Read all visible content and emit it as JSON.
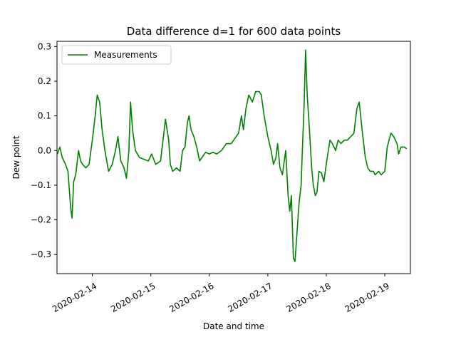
{
  "chart_data": {
    "type": "line",
    "title": "Data difference d=1 for 600 data points",
    "xlabel": "Date and time",
    "ylabel": "Dew point",
    "xlim": [
      "2020-02-13 09:30",
      "2020-02-19 10:30"
    ],
    "ylim": [
      -0.355,
      0.315
    ],
    "x_ticks": [
      "2020-02-14",
      "2020-02-15",
      "2020-02-16",
      "2020-02-17",
      "2020-02-18",
      "2020-02-19"
    ],
    "y_ticks": [
      -0.3,
      -0.2,
      -0.1,
      0.0,
      0.1,
      0.2,
      0.3
    ],
    "y_tick_labels": [
      "−0.3",
      "−0.2",
      "−0.1",
      "0.0",
      "0.1",
      "0.2",
      "0.3"
    ],
    "grid": false,
    "legend": {
      "position": "upper-left"
    },
    "colors": {
      "series": "#008000"
    },
    "series": [
      {
        "name": "Measurements",
        "points": [
          [
            "2020-02-13 09:40",
            -0.01
          ],
          [
            "2020-02-13 10:40",
            0.01
          ],
          [
            "2020-02-13 11:40",
            -0.02
          ],
          [
            "2020-02-13 12:20",
            -0.03
          ],
          [
            "2020-02-13 13:00",
            -0.04
          ],
          [
            "2020-02-13 14:00",
            -0.06
          ],
          [
            "2020-02-13 15:10",
            -0.17
          ],
          [
            "2020-02-13 15:40",
            -0.195
          ],
          [
            "2020-02-13 16:20",
            -0.09
          ],
          [
            "2020-02-13 17:10",
            -0.07
          ],
          [
            "2020-02-13 18:20",
            0.0
          ],
          [
            "2020-02-13 19:10",
            -0.03
          ],
          [
            "2020-02-13 20:00",
            -0.04
          ],
          [
            "2020-02-13 21:20",
            -0.05
          ],
          [
            "2020-02-13 22:40",
            -0.04
          ],
          [
            "2020-02-14 00:00",
            0.03
          ],
          [
            "2020-02-14 01:10",
            0.1
          ],
          [
            "2020-02-14 02:00",
            0.16
          ],
          [
            "2020-02-14 03:00",
            0.14
          ],
          [
            "2020-02-14 04:00",
            0.06
          ],
          [
            "2020-02-14 05:10",
            0.0
          ],
          [
            "2020-02-14 06:40",
            -0.06
          ],
          [
            "2020-02-14 08:10",
            -0.04
          ],
          [
            "2020-02-14 09:30",
            0.0
          ],
          [
            "2020-02-14 10:30",
            0.04
          ],
          [
            "2020-02-14 11:40",
            -0.03
          ],
          [
            "2020-02-14 13:00",
            -0.05
          ],
          [
            "2020-02-14 14:00",
            -0.08
          ],
          [
            "2020-02-14 15:00",
            0.0
          ],
          [
            "2020-02-14 15:40",
            0.14
          ],
          [
            "2020-02-14 16:30",
            0.06
          ],
          [
            "2020-02-14 17:40",
            0.0
          ],
          [
            "2020-02-14 19:20",
            -0.02
          ],
          [
            "2020-02-14 21:00",
            -0.025
          ],
          [
            "2020-02-14 23:00",
            -0.03
          ],
          [
            "2020-02-15 00:20",
            -0.01
          ],
          [
            "2020-02-15 02:00",
            -0.04
          ],
          [
            "2020-02-15 04:00",
            -0.03
          ],
          [
            "2020-02-15 06:00",
            0.09
          ],
          [
            "2020-02-15 07:20",
            0.03
          ],
          [
            "2020-02-15 08:00",
            -0.04
          ],
          [
            "2020-02-15 09:00",
            -0.06
          ],
          [
            "2020-02-15 10:30",
            -0.05
          ],
          [
            "2020-02-15 12:00",
            -0.06
          ],
          [
            "2020-02-15 13:00",
            0.0
          ],
          [
            "2020-02-15 14:00",
            0.01
          ],
          [
            "2020-02-15 15:00",
            0.08
          ],
          [
            "2020-02-15 15:40",
            0.1
          ],
          [
            "2020-02-15 16:30",
            0.06
          ],
          [
            "2020-02-15 17:40",
            0.04
          ],
          [
            "2020-02-15 18:50",
            0.01
          ],
          [
            "2020-02-15 20:00",
            -0.03
          ],
          [
            "2020-02-15 21:00",
            -0.02
          ],
          [
            "2020-02-15 22:30",
            -0.005
          ],
          [
            "2020-02-16 00:00",
            -0.01
          ],
          [
            "2020-02-16 01:30",
            -0.005
          ],
          [
            "2020-02-16 03:00",
            -0.01
          ],
          [
            "2020-02-16 05:00",
            0.0
          ],
          [
            "2020-02-16 07:00",
            0.02
          ],
          [
            "2020-02-16 09:00",
            0.02
          ],
          [
            "2020-02-16 11:00",
            0.04
          ],
          [
            "2020-02-16 12:00",
            0.05
          ],
          [
            "2020-02-16 13:10",
            0.1
          ],
          [
            "2020-02-16 14:00",
            0.06
          ],
          [
            "2020-02-16 15:00",
            0.12
          ],
          [
            "2020-02-16 16:10",
            0.16
          ],
          [
            "2020-02-16 17:40",
            0.14
          ],
          [
            "2020-02-16 19:00",
            0.17
          ],
          [
            "2020-02-16 20:30",
            0.17
          ],
          [
            "2020-02-16 21:20",
            0.16
          ],
          [
            "2020-02-16 22:30",
            0.1
          ],
          [
            "2020-02-17 00:00",
            0.04
          ],
          [
            "2020-02-17 01:20",
            0.0
          ],
          [
            "2020-02-17 02:20",
            -0.04
          ],
          [
            "2020-02-17 03:20",
            -0.02
          ],
          [
            "2020-02-17 04:00",
            0.02
          ],
          [
            "2020-02-17 05:00",
            -0.05
          ],
          [
            "2020-02-17 06:00",
            -0.07
          ],
          [
            "2020-02-17 07:20",
            0.0
          ],
          [
            "2020-02-17 08:20",
            -0.13
          ],
          [
            "2020-02-17 09:00",
            -0.175
          ],
          [
            "2020-02-17 09:40",
            -0.13
          ],
          [
            "2020-02-17 10:30",
            -0.31
          ],
          [
            "2020-02-17 11:10",
            -0.32
          ],
          [
            "2020-02-17 11:50",
            -0.25
          ],
          [
            "2020-02-17 12:50",
            -0.15
          ],
          [
            "2020-02-17 13:40",
            -0.1
          ],
          [
            "2020-02-17 14:10",
            0.0
          ],
          [
            "2020-02-17 14:50",
            0.12
          ],
          [
            "2020-02-17 15:30",
            0.29
          ],
          [
            "2020-02-17 16:10",
            0.16
          ],
          [
            "2020-02-17 17:10",
            0.05
          ],
          [
            "2020-02-17 18:00",
            -0.05
          ],
          [
            "2020-02-17 18:40",
            -0.1
          ],
          [
            "2020-02-17 19:30",
            -0.13
          ],
          [
            "2020-02-17 20:10",
            -0.12
          ],
          [
            "2020-02-17 21:00",
            -0.06
          ],
          [
            "2020-02-17 22:00",
            -0.065
          ],
          [
            "2020-02-17 23:00",
            -0.09
          ],
          [
            "2020-02-18 00:10",
            -0.03
          ],
          [
            "2020-02-18 01:30",
            0.03
          ],
          [
            "2020-02-18 02:30",
            0.02
          ],
          [
            "2020-02-18 03:50",
            0.0
          ],
          [
            "2020-02-18 04:50",
            0.03
          ],
          [
            "2020-02-18 06:00",
            0.02
          ],
          [
            "2020-02-18 07:20",
            0.03
          ],
          [
            "2020-02-18 08:40",
            0.03
          ],
          [
            "2020-02-18 10:00",
            0.04
          ],
          [
            "2020-02-18 11:20",
            0.05
          ],
          [
            "2020-02-18 12:30",
            0.12
          ],
          [
            "2020-02-18 13:30",
            0.14
          ],
          [
            "2020-02-18 14:40",
            0.06
          ],
          [
            "2020-02-18 16:00",
            -0.02
          ],
          [
            "2020-02-18 17:00",
            -0.05
          ],
          [
            "2020-02-18 18:00",
            -0.06
          ],
          [
            "2020-02-18 19:20",
            -0.06
          ],
          [
            "2020-02-18 20:00",
            -0.07
          ],
          [
            "2020-02-18 21:30",
            -0.06
          ],
          [
            "2020-02-18 22:30",
            -0.07
          ],
          [
            "2020-02-19 00:00",
            -0.06
          ],
          [
            "2020-02-19 01:00",
            0.01
          ],
          [
            "2020-02-19 02:30",
            0.05
          ],
          [
            "2020-02-19 03:40",
            0.04
          ],
          [
            "2020-02-19 05:00",
            0.02
          ],
          [
            "2020-02-19 05:40",
            -0.01
          ],
          [
            "2020-02-19 06:40",
            0.01
          ],
          [
            "2020-02-19 08:00",
            0.01
          ],
          [
            "2020-02-19 09:00",
            0.005
          ]
        ]
      }
    ]
  }
}
